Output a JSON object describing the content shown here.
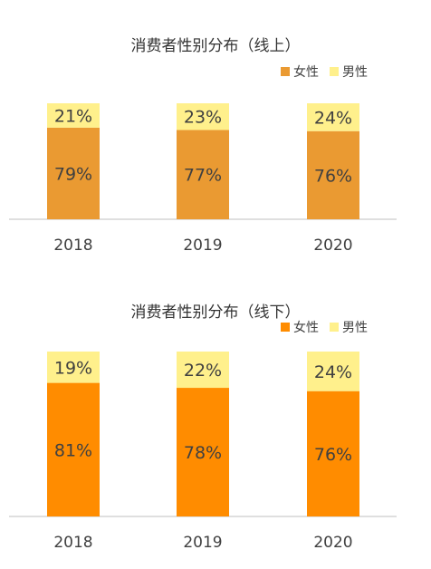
{
  "chart_data": [
    {
      "type": "bar",
      "stacked": true,
      "title": "消费者性别分布（线上）",
      "categories": [
        "2018",
        "2019",
        "2020"
      ],
      "series": [
        {
          "name": "女性",
          "values": [
            79,
            77,
            76
          ],
          "labels": [
            "79%",
            "77%",
            "76%"
          ],
          "color": "#EA9A32"
        },
        {
          "name": "男性",
          "values": [
            21,
            23,
            24
          ],
          "labels": [
            "21%",
            "23%",
            "24%"
          ],
          "color": "#FFF08C"
        }
      ],
      "ylim": [
        0,
        100
      ],
      "grid": false,
      "legend": "top-right"
    },
    {
      "type": "bar",
      "stacked": true,
      "title": "消费者性别分布（线下）",
      "categories": [
        "2018",
        "2019",
        "2020"
      ],
      "series": [
        {
          "name": "女性",
          "values": [
            81,
            78,
            76
          ],
          "labels": [
            "81%",
            "78%",
            "76%"
          ],
          "color": "#FF8C00"
        },
        {
          "name": "男性",
          "values": [
            19,
            22,
            24
          ],
          "labels": [
            "19%",
            "22%",
            "24%"
          ],
          "color": "#FFF08C"
        }
      ],
      "ylim": [
        0,
        100
      ],
      "grid": false,
      "legend": "top-right"
    }
  ]
}
